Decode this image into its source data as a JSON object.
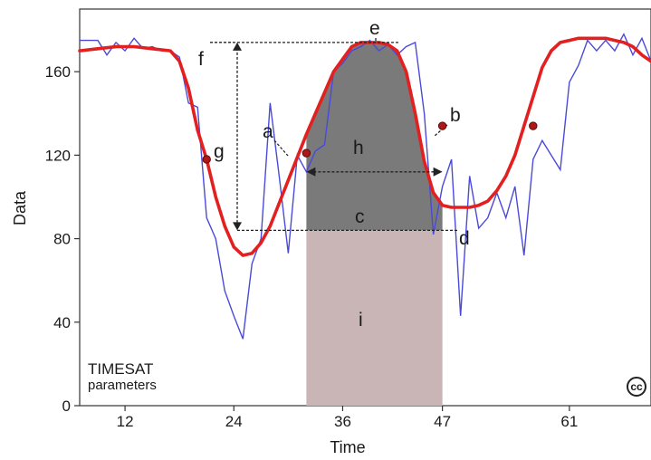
{
  "chart_data": {
    "type": "line",
    "title": "",
    "xlabel": "Time",
    "ylabel": "Data",
    "xlim": [
      7,
      70
    ],
    "ylim": [
      0,
      190
    ],
    "x_ticks": [
      12,
      24,
      36,
      47,
      61
    ],
    "y_ticks": [
      0,
      40,
      80,
      120,
      160
    ],
    "grid": false,
    "legend": "none",
    "colors": {
      "raw": "#4a4ad8",
      "fitted": "#e32020",
      "markers": "#b01818",
      "small_integral": "#7a7a7a",
      "base_area": "#c9b5b5",
      "annotation": "#222222"
    },
    "series": [
      {
        "role": "raw-data",
        "x": [
          7,
          8,
          9,
          10,
          11,
          12,
          13,
          14,
          15,
          16,
          17,
          18,
          19,
          20,
          21,
          22,
          23,
          24,
          25,
          26,
          27,
          28,
          29,
          30,
          31,
          32,
          33,
          34,
          35,
          36,
          37,
          38,
          39,
          40,
          41,
          42,
          43,
          44,
          45,
          46,
          47,
          48,
          49,
          50,
          51,
          52,
          53,
          54,
          55,
          56,
          57,
          58,
          59,
          60,
          61,
          62,
          63,
          64,
          65,
          66,
          67,
          68,
          69,
          70
        ],
        "y": [
          175,
          175,
          175,
          168,
          174,
          170,
          176,
          171,
          172,
          170,
          170,
          167,
          145,
          143,
          90,
          80,
          55,
          43,
          32,
          68,
          80,
          145,
          110,
          73,
          120,
          112,
          122,
          125,
          160,
          164,
          170,
          172,
          175,
          170,
          173,
          168,
          172,
          174,
          140,
          82,
          105,
          118,
          43,
          110,
          85,
          90,
          102,
          90,
          105,
          72,
          118,
          127,
          120,
          113,
          155,
          163,
          175,
          170,
          175,
          170,
          178,
          168,
          176,
          165
        ]
      },
      {
        "role": "fitted-curve",
        "x": [
          7,
          9,
          11,
          13,
          15,
          17,
          18,
          19,
          20,
          21,
          22,
          23,
          24,
          25,
          26,
          27,
          28,
          29,
          30,
          31,
          32,
          33,
          34,
          35,
          36,
          37,
          38,
          39,
          40,
          41,
          42,
          43,
          44,
          45,
          46,
          47,
          48,
          49,
          50,
          51,
          52,
          53,
          54,
          55,
          56,
          57,
          58,
          59,
          60,
          61,
          62,
          63,
          64,
          65,
          66,
          67,
          68,
          69,
          70
        ],
        "y": [
          170,
          171,
          172,
          172,
          171,
          170,
          165,
          152,
          132,
          118,
          100,
          86,
          76,
          72,
          73,
          78,
          86,
          97,
          108,
          119,
          130,
          140,
          150,
          160,
          166,
          172,
          174,
          174,
          174,
          173,
          170,
          160,
          140,
          117,
          102,
          96,
          95,
          95,
          95,
          96,
          98,
          103,
          110,
          120,
          134,
          148,
          162,
          170,
          174,
          175,
          176,
          176,
          176,
          176,
          175,
          174,
          172,
          168,
          165
        ]
      }
    ],
    "markers": [
      {
        "x": 21,
        "y": 118
      },
      {
        "x": 32,
        "y": 121
      },
      {
        "x": 47,
        "y": 134
      },
      {
        "x": 57,
        "y": 134
      }
    ],
    "areas": {
      "small_integral": {
        "x_start": 32,
        "x_end": 47,
        "base": 84
      },
      "base": {
        "x_start": 32,
        "x_end": 47,
        "y_top": 84
      }
    },
    "annotations": {
      "a": "a",
      "b": "b",
      "c": "c",
      "d": "d",
      "e": "e",
      "f": "f",
      "g": "g",
      "h": "h",
      "i": "i"
    },
    "credit_line1": "TIMESAT",
    "credit_line2": "parameters",
    "license_badge": "cc"
  }
}
